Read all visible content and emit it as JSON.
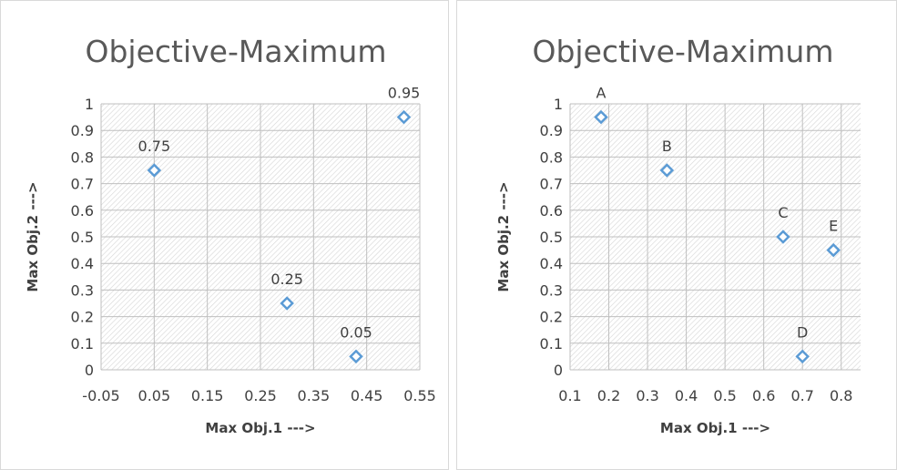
{
  "chart_data": [
    {
      "type": "scatter",
      "title": "Objective-Maximum",
      "xlabel": "Max Obj.1 --->",
      "ylabel": "Max Obj.2 --->",
      "xlim": [
        -0.05,
        0.55
      ],
      "ylim": [
        0,
        1
      ],
      "xticks": [
        "-0.05",
        "0.05",
        "0.15",
        "0.25",
        "0.35",
        "0.45",
        "0.55"
      ],
      "yticks": [
        "0",
        "0.1",
        "0.2",
        "0.3",
        "0.4",
        "0.5",
        "0.6",
        "0.7",
        "0.8",
        "0.9",
        "1"
      ],
      "grid": "hatched",
      "legend": "none",
      "marker_color": "#5b9bd5",
      "points": [
        {
          "x": 0.05,
          "y": 0.75,
          "label": "0.75"
        },
        {
          "x": 0.3,
          "y": 0.25,
          "label": "0.25"
        },
        {
          "x": 0.43,
          "y": 0.05,
          "label": "0.05"
        },
        {
          "x": 0.52,
          "y": 0.95,
          "label": "0.95"
        }
      ]
    },
    {
      "type": "scatter",
      "title": "Objective-Maximum",
      "xlabel": "Max Obj.1 --->",
      "ylabel": "Max Obj.2 --->",
      "xlim": [
        0.1,
        0.85
      ],
      "ylim": [
        0,
        1
      ],
      "xticks": [
        "0.1",
        "0.2",
        "0.3",
        "0.4",
        "0.5",
        "0.6",
        "0.7",
        "0.8"
      ],
      "yticks": [
        "0",
        "0.1",
        "0.2",
        "0.3",
        "0.4",
        "0.5",
        "0.6",
        "0.7",
        "0.8",
        "0.9",
        "1"
      ],
      "grid": "hatched",
      "legend": "none",
      "marker_color": "#5b9bd5",
      "points": [
        {
          "x": 0.18,
          "y": 0.95,
          "label": "A"
        },
        {
          "x": 0.35,
          "y": 0.75,
          "label": "B"
        },
        {
          "x": 0.65,
          "y": 0.5,
          "label": "C"
        },
        {
          "x": 0.7,
          "y": 0.05,
          "label": "D"
        },
        {
          "x": 0.78,
          "y": 0.45,
          "label": "E"
        }
      ]
    }
  ]
}
